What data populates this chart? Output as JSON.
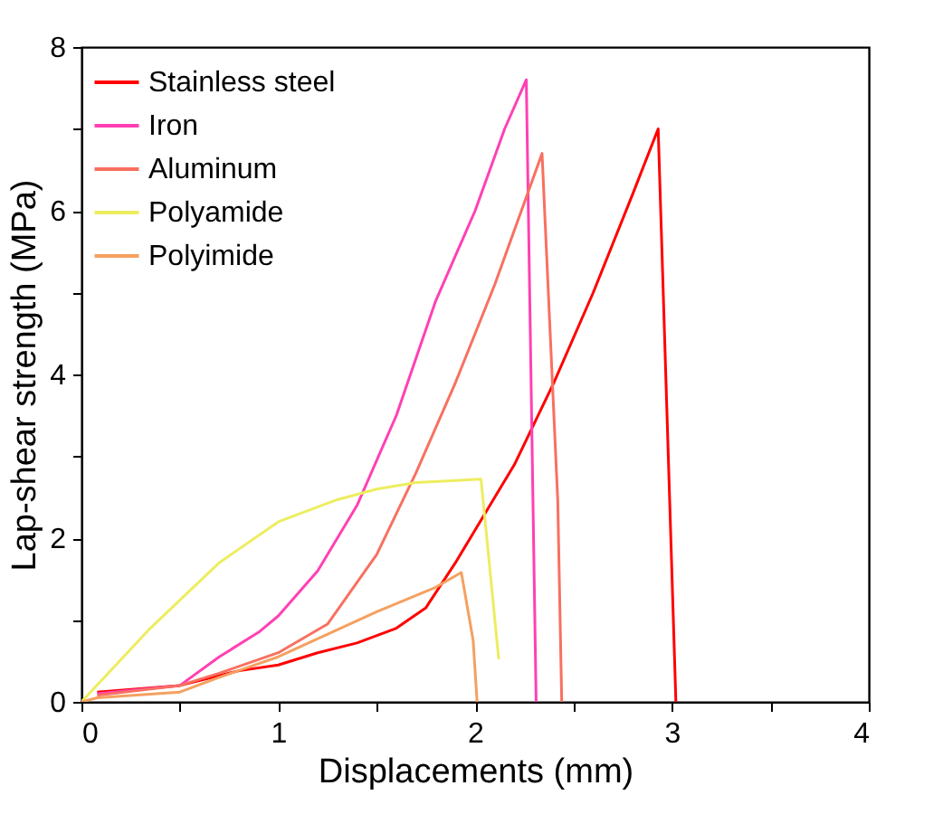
{
  "chart_data": {
    "type": "line",
    "xlabel": "Displacements (mm)",
    "ylabel": "Lap-shear strength (MPa)",
    "xlim": [
      0,
      4
    ],
    "ylim": [
      0,
      8
    ],
    "xticks": [
      0,
      {
        "value": 0.5,
        "label": null
      },
      1,
      {
        "value": 1.5,
        "label": null
      },
      2,
      {
        "value": 2.5,
        "label": null
      },
      3,
      {
        "value": 3.5,
        "label": null
      },
      4
    ],
    "yticks": [
      0,
      {
        "value": 1,
        "label": null
      },
      2,
      {
        "value": 3,
        "label": null
      },
      4,
      {
        "value": 5,
        "label": null
      },
      6,
      {
        "value": 7,
        "label": null
      },
      8
    ],
    "grid": false,
    "legend": "top left",
    "marker": "none",
    "line_style": "solid",
    "series": [
      {
        "name": "Stainless steel",
        "color": "#ff0000",
        "x": [
          0.08,
          0.5,
          0.8,
          1.0,
          1.2,
          1.4,
          1.6,
          1.75,
          1.9,
          2.0,
          2.2,
          2.4,
          2.6,
          2.8,
          2.93,
          3.02
        ],
        "values": [
          0.12,
          0.2,
          0.38,
          0.45,
          0.6,
          0.72,
          0.9,
          1.15,
          1.7,
          2.1,
          2.9,
          3.9,
          5.0,
          6.2,
          7.0,
          0
        ]
      },
      {
        "name": "Iron",
        "color": "#ff40b4",
        "x": [
          0.08,
          0.5,
          0.7,
          0.9,
          1.0,
          1.2,
          1.4,
          1.6,
          1.8,
          2.0,
          2.15,
          2.26,
          2.31
        ],
        "values": [
          0.1,
          0.2,
          0.55,
          0.85,
          1.05,
          1.6,
          2.4,
          3.5,
          4.9,
          6.0,
          7.0,
          7.6,
          0
        ]
      },
      {
        "name": "Aluminum",
        "color": "#f87060",
        "x": [
          0.08,
          0.5,
          0.7,
          1.0,
          1.25,
          1.5,
          1.7,
          1.9,
          2.1,
          2.34,
          2.42,
          2.44
        ],
        "values": [
          0.08,
          0.2,
          0.35,
          0.6,
          0.95,
          1.8,
          2.8,
          3.9,
          5.1,
          6.7,
          2.45,
          0
        ]
      },
      {
        "name": "Polyamide",
        "color": "#eded60",
        "x": [
          0,
          0.35,
          0.7,
          1.0,
          1.3,
          1.5,
          1.7,
          2.03,
          2.12
        ],
        "values": [
          0,
          0.9,
          1.7,
          2.2,
          2.47,
          2.6,
          2.68,
          2.72,
          0.52
        ]
      },
      {
        "name": "Polyimide",
        "color": "#f5a060",
        "x": [
          0,
          0.08,
          0.5,
          0.7,
          1.0,
          1.5,
          1.8,
          1.93,
          1.99,
          2.01
        ],
        "values": [
          0,
          0.05,
          0.12,
          0.3,
          0.55,
          1.1,
          1.4,
          1.58,
          0.75,
          0
        ]
      }
    ]
  }
}
